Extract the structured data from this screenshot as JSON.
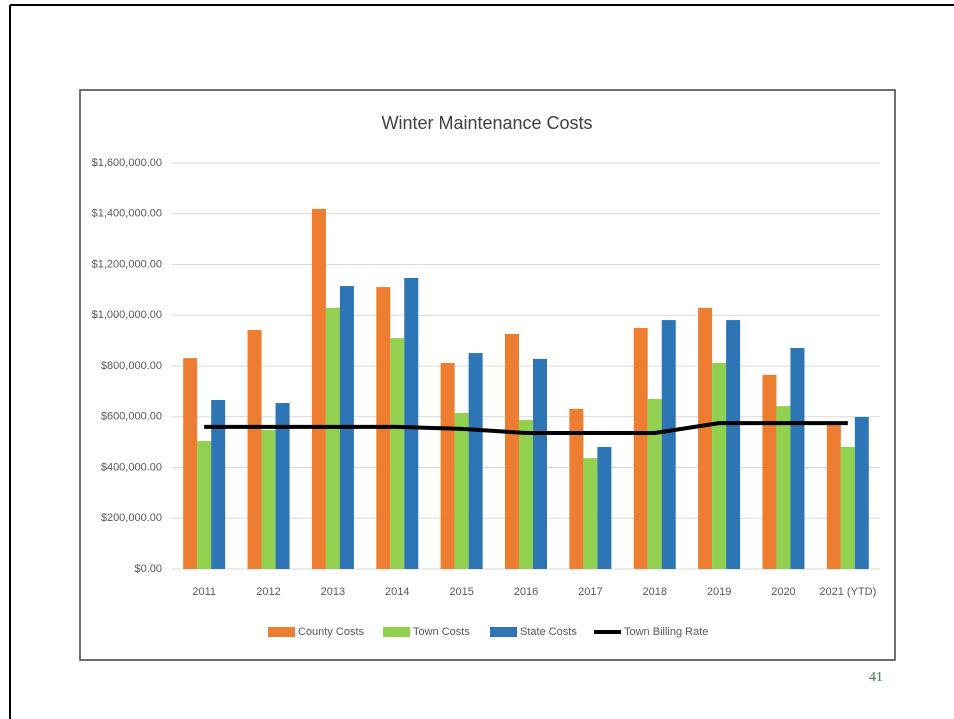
{
  "chart_data": {
    "type": "bar",
    "title": "Winter Maintenance Costs",
    "categories": [
      "2011",
      "2012",
      "2013",
      "2014",
      "2015",
      "2016",
      "2017",
      "2018",
      "2019",
      "2020",
      "2021 (YTD)"
    ],
    "series": [
      {
        "name": "County Costs",
        "type": "bar",
        "color": "#ed7d31",
        "values": [
          831000,
          942000,
          1419000,
          1111000,
          812000,
          926000,
          631000,
          950000,
          1029000,
          765000,
          580000
        ]
      },
      {
        "name": "Town Costs",
        "type": "bar",
        "color": "#92d050",
        "values": [
          504000,
          548000,
          1029000,
          910000,
          615000,
          587000,
          437000,
          670000,
          812000,
          642000,
          481000
        ]
      },
      {
        "name": "State Costs",
        "type": "bar",
        "color": "#2e75b6",
        "values": [
          666000,
          654000,
          1115000,
          1147000,
          851000,
          828000,
          481000,
          981000,
          981000,
          871000,
          599000
        ]
      },
      {
        "name": "Town Billing Rate",
        "type": "line",
        "color": "#000000",
        "values": [
          560000,
          560000,
          560000,
          560000,
          552000,
          536000,
          536000,
          536000,
          575000,
          575000,
          575000
        ]
      }
    ],
    "ylim": [
      0,
      1600000
    ],
    "yticks": [
      {
        "value": 0,
        "label": "$0.00"
      },
      {
        "value": 200000,
        "label": "$200,000.00"
      },
      {
        "value": 400000,
        "label": "$400,000.00"
      },
      {
        "value": 600000,
        "label": "$600,000.00"
      },
      {
        "value": 800000,
        "label": "$800,000.00"
      },
      {
        "value": 1000000,
        "label": "$1,000,000.00"
      },
      {
        "value": 1200000,
        "label": "$1,200,000.00"
      },
      {
        "value": 1400000,
        "label": "$1,400,000.00"
      },
      {
        "value": 1600000,
        "label": "$1,600,000.00"
      }
    ],
    "grid": true,
    "legend": "bottom"
  },
  "page_number": "41"
}
